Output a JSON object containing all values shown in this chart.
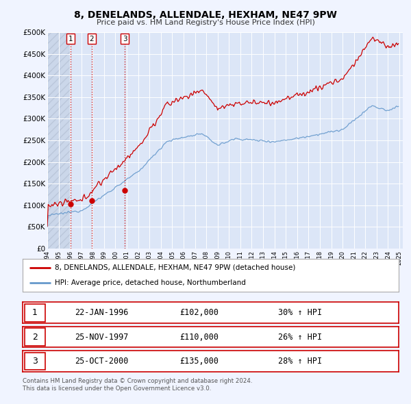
{
  "title": "8, DENELANDS, ALLENDALE, HEXHAM, NE47 9PW",
  "subtitle": "Price paid vs. HM Land Registry's House Price Index (HPI)",
  "ylim": [
    0,
    500000
  ],
  "yticks": [
    0,
    50000,
    100000,
    150000,
    200000,
    250000,
    300000,
    350000,
    400000,
    450000,
    500000
  ],
  "ytick_labels": [
    "£0",
    "£50K",
    "£100K",
    "£150K",
    "£200K",
    "£250K",
    "£300K",
    "£350K",
    "£400K",
    "£450K",
    "£500K"
  ],
  "background_color": "#f0f4ff",
  "plot_bg_color": "#dce6f7",
  "grid_color": "#c8d8ee",
  "hatch_color": "#c0cce0",
  "red_line_color": "#cc0000",
  "blue_line_color": "#6699cc",
  "sale_marker_color": "#cc0000",
  "sale_dates_num": [
    1996.06,
    1997.9,
    2000.82
  ],
  "sale_prices": [
    102000,
    110000,
    135000
  ],
  "sale_labels": [
    "1",
    "2",
    "3"
  ],
  "vline_dates": [
    1996.06,
    1997.9,
    2000.82
  ],
  "legend_line1": "8, DENELANDS, ALLENDALE, HEXHAM, NE47 9PW (detached house)",
  "legend_line2": "HPI: Average price, detached house, Northumberland",
  "table_rows": [
    {
      "num": "1",
      "date": "22-JAN-1996",
      "price": "£102,000",
      "hpi": "30% ↑ HPI"
    },
    {
      "num": "2",
      "date": "25-NOV-1997",
      "price": "£110,000",
      "hpi": "26% ↑ HPI"
    },
    {
      "num": "3",
      "date": "25-OCT-2000",
      "price": "£135,000",
      "hpi": "28% ↑ HPI"
    }
  ],
  "footnote1": "Contains HM Land Registry data © Crown copyright and database right 2024.",
  "footnote2": "This data is licensed under the Open Government Licence v3.0."
}
